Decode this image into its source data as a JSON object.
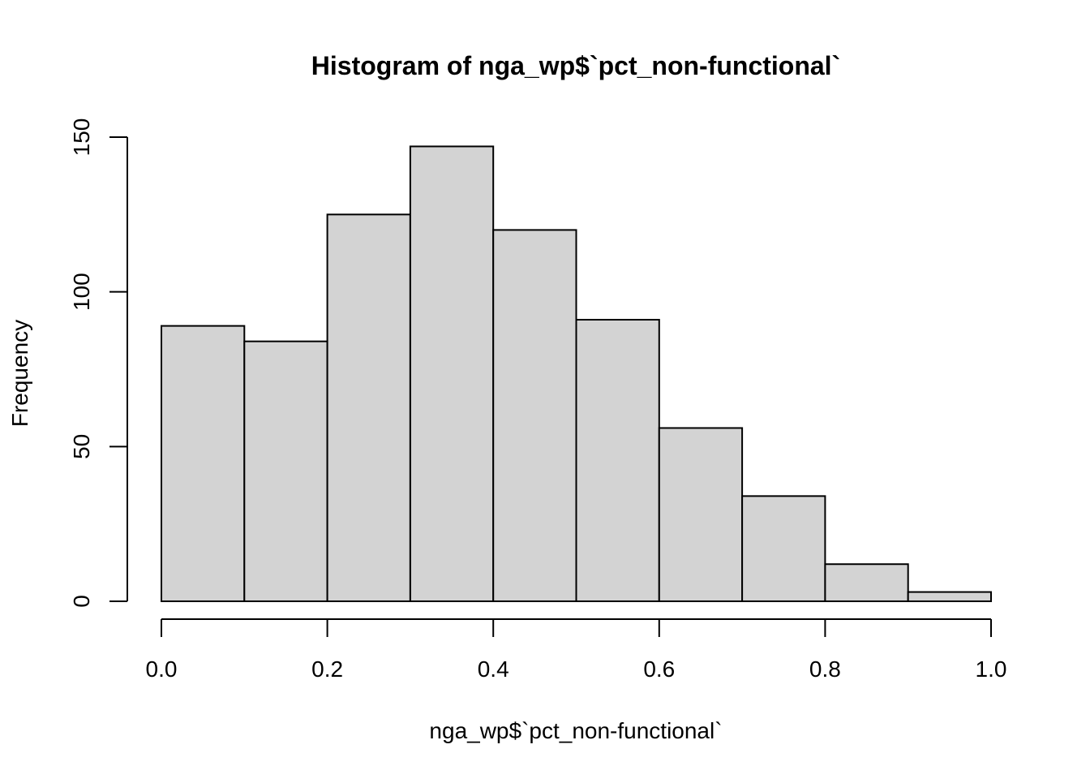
{
  "chart_data": {
    "type": "bar",
    "subtype": "histogram",
    "title": "Histogram of nga_wp$`pct_non-functional`",
    "xlabel": "nga_wp$`pct_non-functional`",
    "ylabel": "Frequency",
    "bin_edges": [
      0.0,
      0.1,
      0.2,
      0.3,
      0.4,
      0.5,
      0.6,
      0.7,
      0.8,
      0.9,
      1.0
    ],
    "values": [
      89,
      84,
      125,
      147,
      120,
      91,
      56,
      34,
      12,
      3
    ],
    "xlim": [
      0.0,
      1.0
    ],
    "ylim": [
      0,
      150
    ],
    "x_ticks": [
      "0.0",
      "0.2",
      "0.4",
      "0.6",
      "0.8",
      "1.0"
    ],
    "y_ticks": [
      "0",
      "50",
      "100",
      "150"
    ],
    "grid": false,
    "bar_fill": "#d3d3d3",
    "bar_stroke": "#000000"
  }
}
